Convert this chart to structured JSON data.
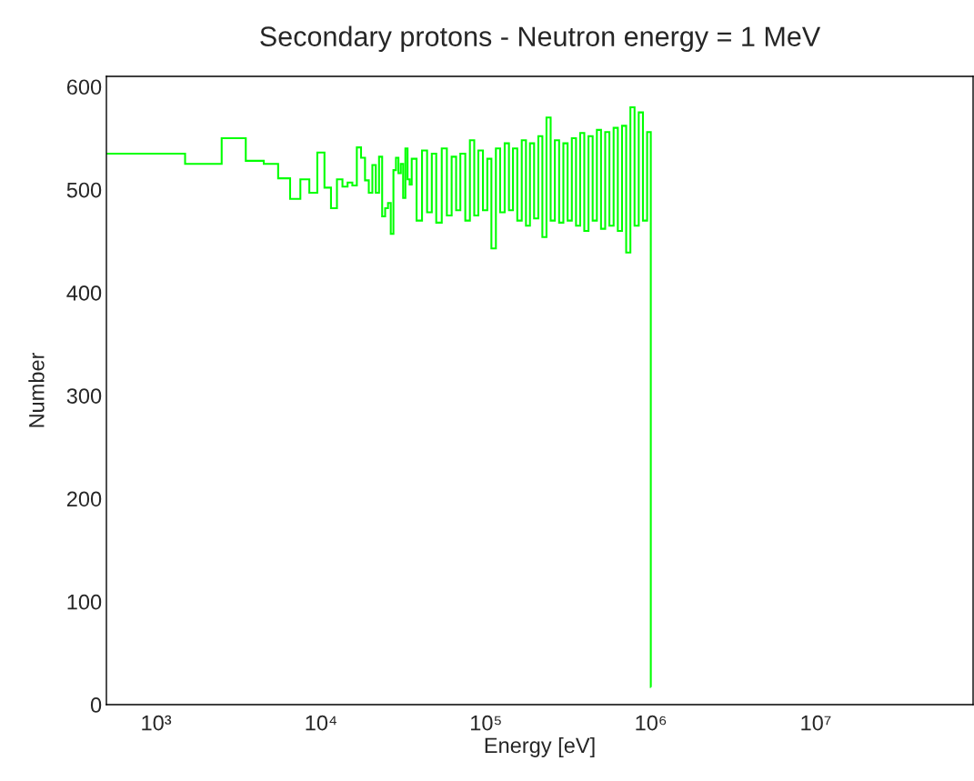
{
  "chart_data": {
    "type": "histogram",
    "title": "Secondary protons - Neutron energy = 1 MeV",
    "xlabel": "Energy [eV]",
    "ylabel": "Number",
    "color": "#00ff00",
    "log": "x",
    "xlim": [
      500,
      90000000
    ],
    "ylim": [
      0,
      610
    ],
    "xticks": [
      {
        "value": 1000,
        "label": "10³"
      },
      {
        "value": 10000,
        "label": "10⁴"
      },
      {
        "value": 100000,
        "label": "10⁵"
      },
      {
        "value": 1000000,
        "label": "10⁶"
      },
      {
        "value": 10000000,
        "label": "10⁷"
      }
    ],
    "yticks": [
      0,
      100,
      200,
      300,
      400,
      500,
      600
    ],
    "bins": [
      500,
      1500,
      2500,
      3500,
      4500,
      5500,
      6500,
      7500,
      8500,
      9500,
      10500,
      11500,
      12500,
      13500,
      14500,
      15500,
      16500,
      17500,
      18500,
      19500,
      20500,
      21500,
      22500,
      23500,
      24500,
      25500,
      26500,
      27500,
      28500,
      29500,
      30500,
      31500,
      32500,
      33500,
      34500,
      35500,
      38000,
      41000,
      44000,
      47000,
      50000,
      54000,
      58000,
      62000,
      66000,
      70000,
      75000,
      80000,
      85000,
      90000,
      96000,
      102000,
      108000,
      115000,
      122000,
      130000,
      138000,
      146000,
      155000,
      165000,
      175000,
      185000,
      196000,
      208000,
      220000,
      233000,
      247000,
      262000,
      278000,
      295000,
      313000,
      332000,
      352000,
      373000,
      395000,
      419000,
      444000,
      471000,
      499000,
      529000,
      561000,
      595000,
      631000,
      669000,
      709000,
      752000,
      797000,
      845000,
      896000,
      950000,
      1000000,
      1001000
    ],
    "values": [
      535,
      525,
      550,
      528,
      525,
      511,
      491,
      510,
      497,
      536,
      502,
      482,
      510,
      503,
      507,
      504,
      541,
      531,
      509,
      497,
      524,
      497,
      532,
      474,
      482,
      487,
      457,
      519,
      531,
      516,
      525,
      492,
      540,
      510,
      505,
      530,
      470,
      538,
      478,
      535,
      468,
      540,
      475,
      532,
      480,
      535,
      470,
      548,
      475,
      538,
      480,
      530,
      443,
      540,
      478,
      545,
      480,
      540,
      470,
      548,
      465,
      545,
      472,
      552,
      454,
      570,
      470,
      548,
      468,
      545,
      470,
      550,
      465,
      555,
      460,
      552,
      470,
      558,
      462,
      556,
      465,
      560,
      460,
      562,
      439,
      580,
      465,
      575,
      470,
      556,
      17
    ]
  }
}
